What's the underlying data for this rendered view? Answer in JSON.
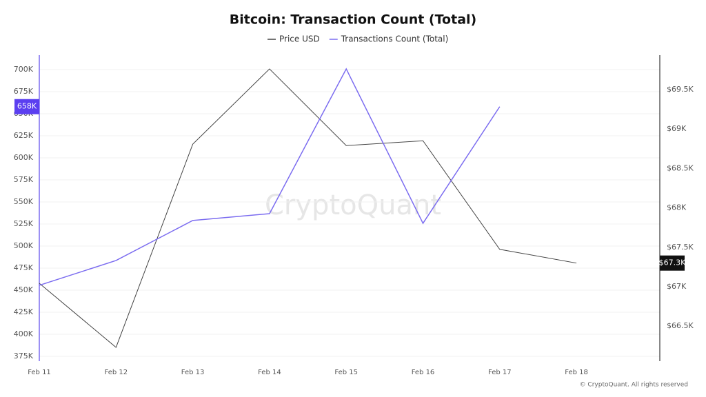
{
  "chart_data": {
    "type": "line",
    "title": "Bitcoin: Transaction Count (Total)",
    "watermark": "CryptoQuant",
    "credit": "© CryptoQuant. All rights reserved",
    "categories": [
      "Feb 11",
      "Feb 12",
      "Feb 13",
      "Feb 14",
      "Feb 15",
      "Feb 16",
      "Feb 17",
      "Feb 18"
    ],
    "series": [
      {
        "name": "Price USD",
        "color": "#444444",
        "axis": "y2",
        "values": [
          67044,
          66231,
          68808,
          69762,
          68790,
          68851,
          67474,
          67300
        ],
        "end_label": "$67.3K"
      },
      {
        "name": "Transactions Count (Total)",
        "color": "#7b6cf0",
        "axis": "y",
        "values": [
          455500,
          483600,
          529000,
          536700,
          700800,
          525800,
          658000,
          null
        ],
        "end_label": "658K"
      }
    ],
    "ylim": [
      369500,
      716400
    ],
    "yticks": [
      {
        "value": 375000,
        "label": "375K"
      },
      {
        "value": 400000,
        "label": "400K"
      },
      {
        "value": 425000,
        "label": "425K"
      },
      {
        "value": 450000,
        "label": "450K"
      },
      {
        "value": 475000,
        "label": "475K"
      },
      {
        "value": 500000,
        "label": "500K"
      },
      {
        "value": 525000,
        "label": "525K"
      },
      {
        "value": 550000,
        "label": "550K"
      },
      {
        "value": 575000,
        "label": "575K"
      },
      {
        "value": 600000,
        "label": "600K"
      },
      {
        "value": 625000,
        "label": "625K"
      },
      {
        "value": 650000,
        "label": "650K"
      },
      {
        "value": 675000,
        "label": "675K"
      },
      {
        "value": 700000,
        "label": "700K"
      }
    ],
    "y2lim": [
      66056,
      69937
    ],
    "y2ticks": [
      {
        "value": 66500,
        "label": "$66.5K"
      },
      {
        "value": 67000,
        "label": "$67K"
      },
      {
        "value": 67500,
        "label": "$67.5K"
      },
      {
        "value": 68000,
        "label": "$68K"
      },
      {
        "value": 68500,
        "label": "$68.5K"
      },
      {
        "value": 69000,
        "label": "$69K"
      },
      {
        "value": 69500,
        "label": "$69.5K"
      }
    ],
    "grid": true
  }
}
